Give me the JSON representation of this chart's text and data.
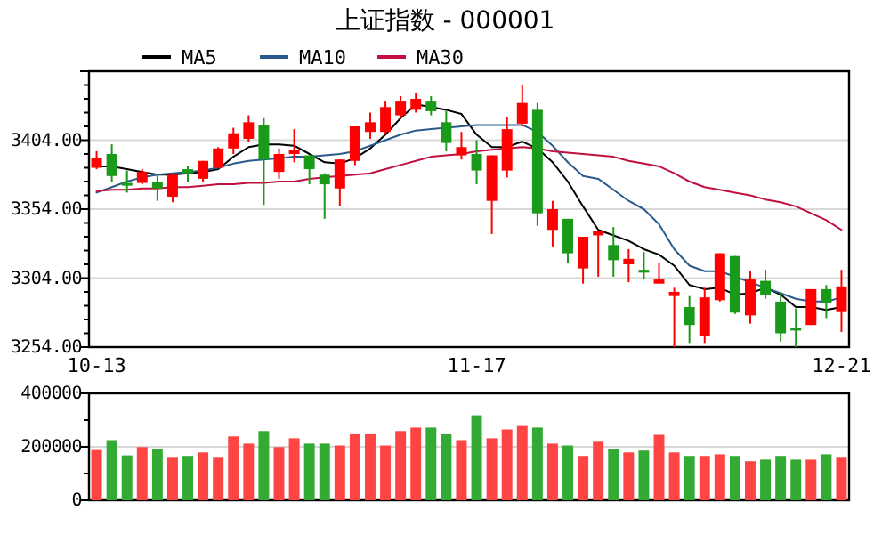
{
  "chart_data": [
    {
      "type": "candlestick",
      "title": "上证指数 - 000001",
      "categories": [
        "10-13",
        null,
        null,
        null,
        null,
        null,
        null,
        null,
        null,
        null,
        null,
        null,
        null,
        null,
        null,
        null,
        null,
        null,
        null,
        null,
        null,
        null,
        null,
        null,
        null,
        "11-17",
        null,
        null,
        null,
        null,
        null,
        null,
        null,
        null,
        null,
        null,
        null,
        null,
        null,
        null,
        null,
        null,
        null,
        null,
        null,
        null,
        null,
        null,
        null,
        "12-21"
      ],
      "ohlc": [
        [
          3384,
          3396,
          3383,
          3391
        ],
        [
          3394,
          3401,
          3374,
          3378
        ],
        [
          3373,
          3382,
          3366,
          3371
        ],
        [
          3373,
          3383,
          3372,
          3381
        ],
        [
          3374,
          3379,
          3360,
          3369
        ],
        [
          3363,
          3380,
          3359,
          3379
        ],
        [
          3383,
          3385,
          3374,
          3380
        ],
        [
          3376,
          3389,
          3374,
          3389
        ],
        [
          3384,
          3399,
          3384,
          3398
        ],
        [
          3398,
          3413,
          3394,
          3409
        ],
        [
          3405,
          3422,
          3403,
          3417
        ],
        [
          3415,
          3420,
          3357,
          3390
        ],
        [
          3381,
          3398,
          3376,
          3394
        ],
        [
          3394,
          3412,
          3388,
          3397
        ],
        [
          3393,
          3393,
          3372,
          3383
        ],
        [
          3379,
          3380,
          3347,
          3372
        ],
        [
          3369,
          3390,
          3356,
          3390
        ],
        [
          3389,
          3414,
          3386,
          3414
        ],
        [
          3410,
          3424,
          3405,
          3417
        ],
        [
          3410,
          3432,
          3408,
          3428
        ],
        [
          3422,
          3436,
          3420,
          3432
        ],
        [
          3426,
          3438,
          3424,
          3434
        ],
        [
          3432,
          3436,
          3422,
          3425
        ],
        [
          3417,
          3425,
          3396,
          3402
        ],
        [
          3393,
          3410,
          3390,
          3399
        ],
        [
          3394,
          3404,
          3372,
          3382
        ],
        [
          3360,
          3393,
          3336,
          3393
        ],
        [
          3382,
          3421,
          3377,
          3412
        ],
        [
          3416,
          3444,
          3414,
          3431
        ],
        [
          3426,
          3431,
          3342,
          3351
        ],
        [
          3339,
          3360,
          3327,
          3354
        ],
        [
          3347,
          3347,
          3315,
          3322
        ],
        [
          3311,
          3334,
          3300,
          3334
        ],
        [
          3335,
          3338,
          3305,
          3338
        ],
        [
          3328,
          3341,
          3305,
          3317
        ],
        [
          3314,
          3325,
          3301,
          3318
        ],
        [
          3310,
          3323,
          3303,
          3308
        ],
        [
          3300,
          3315,
          3300,
          3303
        ],
        [
          3291,
          3297,
          3254,
          3294
        ],
        [
          3283,
          3291,
          3257,
          3270
        ],
        [
          3262,
          3297,
          3257,
          3290
        ],
        [
          3288,
          3322,
          3287,
          3322
        ],
        [
          3320,
          3320,
          3278,
          3279
        ],
        [
          3277,
          3309,
          3271,
          3303
        ],
        [
          3302,
          3310,
          3289,
          3292
        ],
        [
          3287,
          3294,
          3258,
          3264
        ],
        [
          3268,
          3282,
          3254,
          3266
        ],
        [
          3270,
          3296,
          3270,
          3296
        ],
        [
          3296,
          3299,
          3275,
          3286
        ],
        [
          3280,
          3310,
          3265,
          3298
        ]
      ],
      "colors": [
        "#ff0000",
        "#1a9a1a",
        "#1a9a1a",
        "#ff0000",
        "#1a9a1a",
        "#ff0000",
        "#1a9a1a",
        "#ff0000",
        "#ff0000",
        "#ff0000",
        "#ff0000",
        "#1a9a1a",
        "#ff0000",
        "#ff0000",
        "#1a9a1a",
        "#1a9a1a",
        "#ff0000",
        "#ff0000",
        "#ff0000",
        "#ff0000",
        "#ff0000",
        "#ff0000",
        "#1a9a1a",
        "#1a9a1a",
        "#ff0000",
        "#1a9a1a",
        "#ff0000",
        "#ff0000",
        "#ff0000",
        "#1a9a1a",
        "#ff0000",
        "#1a9a1a",
        "#ff0000",
        "#ff0000",
        "#1a9a1a",
        "#ff0000",
        "#1a9a1a",
        "#ff0000",
        "#ff0000",
        "#1a9a1a",
        "#ff0000",
        "#ff0000",
        "#1a9a1a",
        "#ff0000",
        "#1a9a1a",
        "#1a9a1a",
        "#1a9a1a",
        "#ff0000",
        "#1a9a1a",
        "#ff0000"
      ],
      "series": [
        {
          "name": "MA5",
          "type": "line",
          "color": "#000000",
          "values": [
            3385,
            3385,
            3383,
            3381,
            3379,
            3379,
            3380,
            3381,
            3383,
            3392,
            3399,
            3401,
            3401,
            3400,
            3394,
            3388,
            3387,
            3391,
            3398,
            3408,
            3420,
            3430,
            3428,
            3426,
            3423,
            3408,
            3399,
            3399,
            3403,
            3398,
            3388,
            3374,
            3356,
            3339,
            3335,
            3331,
            3325,
            3321,
            3313,
            3299,
            3296,
            3297,
            3292,
            3293,
            3297,
            3292,
            3283,
            3283,
            3281,
            3283
          ]
        },
        {
          "name": "MA10",
          "type": "line",
          "color": "#2a5a8c",
          "values": [
            3366,
            3370,
            3374,
            3377,
            3379,
            3380,
            3381,
            3382,
            3384,
            3387,
            3389,
            3390,
            3391,
            3392,
            3392,
            3393,
            3394,
            3396,
            3400,
            3404,
            3408,
            3411,
            3412,
            3413,
            3414,
            3415,
            3415,
            3415,
            3415,
            3410,
            3400,
            3388,
            3378,
            3376,
            3368,
            3360,
            3354,
            3343,
            3325,
            3313,
            3309,
            3309,
            3305,
            3301,
            3297,
            3293,
            3289,
            3287,
            3287,
            3290
          ]
        },
        {
          "name": "MA30",
          "type": "line",
          "color": "#c0103f",
          "values": [
            3367,
            3368,
            3368,
            3369,
            3369,
            3370,
            3370,
            3371,
            3372,
            3372,
            3373,
            3373,
            3374,
            3374,
            3376,
            3377,
            3378,
            3379,
            3380,
            3383,
            3386,
            3389,
            3392,
            3393,
            3394,
            3396,
            3397,
            3398,
            3399,
            3398,
            3396,
            3395,
            3394,
            3393,
            3392,
            3389,
            3387,
            3385,
            3380,
            3374,
            3370,
            3368,
            3366,
            3364,
            3361,
            3359,
            3356,
            3351,
            3346,
            3339
          ]
        }
      ],
      "ylim": [
        3254,
        3454
      ],
      "yticks": [
        {
          "value": 3254,
          "label": "3254.00"
        },
        {
          "value": 3264,
          "label": null
        },
        {
          "value": 3274,
          "label": null
        },
        {
          "value": 3284,
          "label": null
        },
        {
          "value": 3294,
          "label": null
        },
        {
          "value": 3304,
          "label": "3304.00"
        },
        {
          "value": 3314,
          "label": null
        },
        {
          "value": 3324,
          "label": null
        },
        {
          "value": 3334,
          "label": null
        },
        {
          "value": 3344,
          "label": null
        },
        {
          "value": 3354,
          "label": "3354.00"
        },
        {
          "value": 3364,
          "label": null
        },
        {
          "value": 3374,
          "label": null
        },
        {
          "value": 3384,
          "label": null
        },
        {
          "value": 3394,
          "label": null
        },
        {
          "value": 3404,
          "label": "3404.00"
        },
        {
          "value": 3414,
          "label": null
        },
        {
          "value": 3424,
          "label": null
        },
        {
          "value": 3434,
          "label": null
        },
        {
          "value": 3444,
          "label": null
        }
      ],
      "grid": "y",
      "legend": "top left"
    },
    {
      "type": "bar",
      "categories": [
        null,
        null,
        null,
        null,
        null,
        null,
        null,
        null,
        null,
        null,
        null,
        null,
        null,
        null,
        null,
        null,
        null,
        null,
        null,
        null,
        null,
        null,
        null,
        null,
        null,
        null,
        null,
        null,
        null,
        null,
        null,
        null,
        null,
        null,
        null,
        null,
        null,
        null,
        null,
        null,
        null,
        null,
        null,
        null,
        null,
        null,
        null,
        null,
        null,
        null
      ],
      "values": [
        188000,
        225000,
        168000,
        199000,
        192000,
        159000,
        166000,
        179000,
        159000,
        239000,
        212000,
        259000,
        199000,
        232000,
        212000,
        212000,
        205000,
        247000,
        247000,
        205000,
        259000,
        272000,
        272000,
        247000,
        225000,
        318000,
        232000,
        265000,
        278000,
        272000,
        212000,
        205000,
        166000,
        219000,
        192000,
        179000,
        186000,
        245000,
        179000,
        166000,
        166000,
        172000,
        166000,
        146000,
        152000,
        166000,
        152000,
        152000,
        172000,
        159000
      ],
      "colors": [
        "#ff4444",
        "#33aa33",
        "#33aa33",
        "#ff4444",
        "#33aa33",
        "#ff4444",
        "#33aa33",
        "#ff4444",
        "#ff4444",
        "#ff4444",
        "#ff4444",
        "#33aa33",
        "#ff4444",
        "#ff4444",
        "#33aa33",
        "#33aa33",
        "#ff4444",
        "#ff4444",
        "#ff4444",
        "#ff4444",
        "#ff4444",
        "#ff4444",
        "#33aa33",
        "#33aa33",
        "#ff4444",
        "#33aa33",
        "#ff4444",
        "#ff4444",
        "#ff4444",
        "#33aa33",
        "#ff4444",
        "#33aa33",
        "#ff4444",
        "#ff4444",
        "#33aa33",
        "#ff4444",
        "#33aa33",
        "#ff4444",
        "#ff4444",
        "#33aa33",
        "#ff4444",
        "#ff4444",
        "#33aa33",
        "#ff4444",
        "#33aa33",
        "#33aa33",
        "#33aa33",
        "#ff4444",
        "#33aa33",
        "#ff4444"
      ],
      "ylim": [
        0,
        400000
      ],
      "yticks": [
        0,
        {
          "value": 100000,
          "label": null
        },
        200000,
        {
          "value": 300000,
          "label": null
        },
        400000
      ],
      "grid": "y",
      "tick_labels": "y"
    }
  ]
}
